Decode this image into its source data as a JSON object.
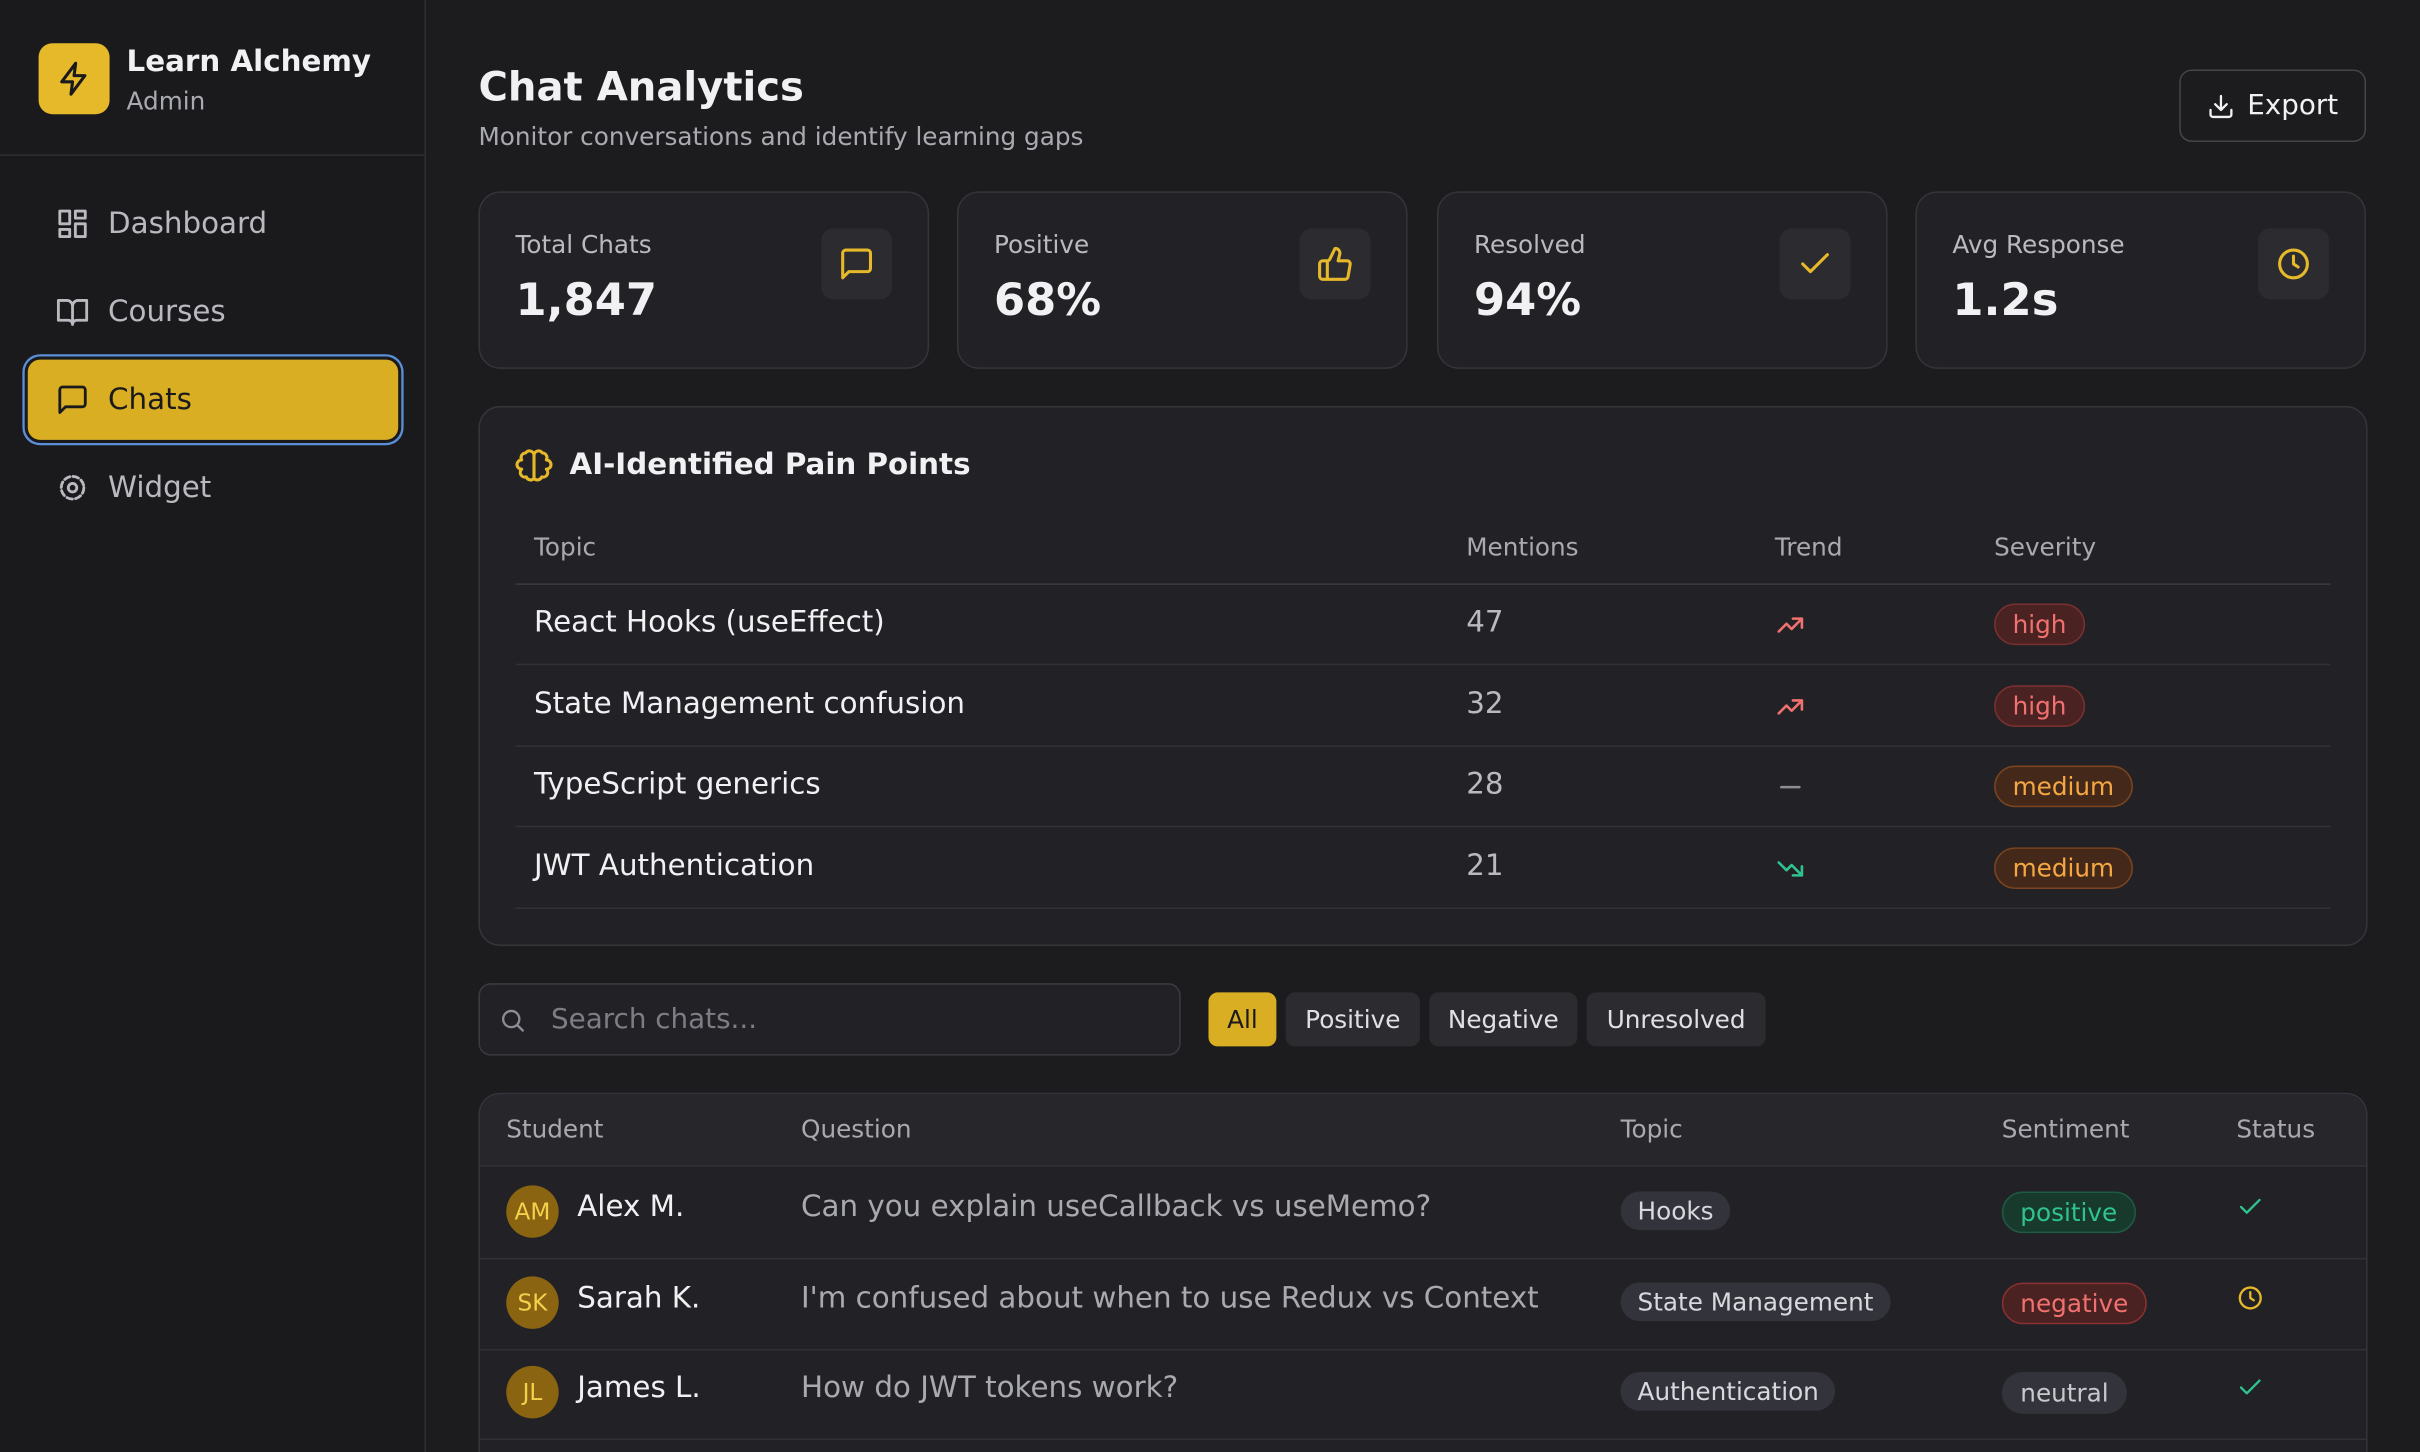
{
  "brand": {
    "name": "Learn Alchemy",
    "role": "Admin"
  },
  "nav": [
    "Dashboard",
    "Courses",
    "Chats",
    "Widget"
  ],
  "header": {
    "title": "Chat Analytics",
    "subtitle": "Monitor conversations and identify learning gaps",
    "export": "Export"
  },
  "stats": [
    {
      "label": "Total Chats",
      "value": "1,847"
    },
    {
      "label": "Positive",
      "value": "68%"
    },
    {
      "label": "Resolved",
      "value": "94%"
    },
    {
      "label": "Avg Response",
      "value": "1.2s"
    }
  ],
  "pain_points": {
    "title": "AI-Identified Pain Points",
    "columns": [
      "Topic",
      "Mentions",
      "Trend",
      "Severity"
    ],
    "rows": [
      {
        "topic": "React Hooks (useEffect)",
        "mentions": 47,
        "severity": "high"
      },
      {
        "topic": "State Management confusion",
        "mentions": 32,
        "severity": "high"
      },
      {
        "topic": "TypeScript generics",
        "mentions": 28,
        "severity": "medium"
      },
      {
        "topic": "JWT Authentication",
        "mentions": 21,
        "severity": "medium"
      }
    ]
  },
  "search": {
    "placeholder": "Search chats..."
  },
  "filters": [
    "All",
    "Positive",
    "Negative",
    "Unresolved"
  ],
  "chats": {
    "columns": [
      "Student",
      "Question",
      "Topic",
      "Sentiment",
      "Status"
    ],
    "rows": [
      {
        "initials": "AM",
        "student": "Alex M.",
        "question": "Can you explain useCallback vs useMemo?",
        "topic": "Hooks",
        "sentiment": "positive"
      },
      {
        "initials": "SK",
        "student": "Sarah K.",
        "question": "I'm confused about when to use Redux vs Context",
        "topic": "State Management",
        "sentiment": "negative"
      },
      {
        "initials": "JL",
        "student": "James L.",
        "question": "How do JWT tokens work?",
        "topic": "Authentication",
        "sentiment": "neutral"
      }
    ]
  }
}
